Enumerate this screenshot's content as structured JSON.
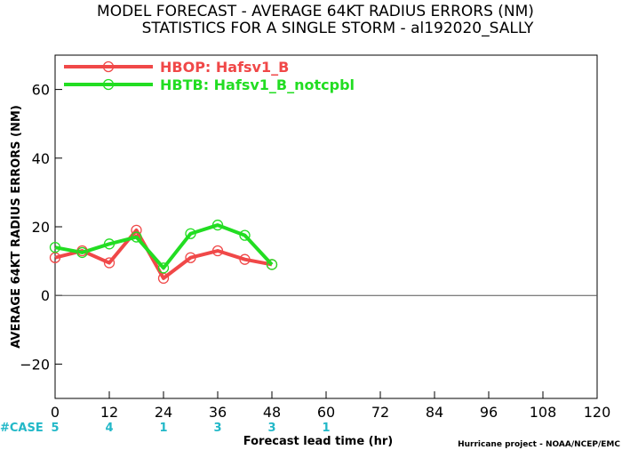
{
  "chart_data": {
    "type": "line",
    "title": "MODEL FORECAST - AVERAGE 64KT RADIUS ERRORS (NM)",
    "subtitle": "STATISTICS FOR A SINGLE STORM - al192020_SALLY",
    "xlabel": "Forecast lead time (hr)",
    "ylabel": "AVERAGE 64KT RADIUS ERRORS (NM)",
    "xlim": [
      0,
      120
    ],
    "ylim": [
      -30,
      70
    ],
    "xticks": [
      0,
      12,
      24,
      36,
      48,
      60,
      72,
      84,
      96,
      108,
      120
    ],
    "yticks": [
      -20,
      0,
      20,
      40,
      60
    ],
    "legend_position": "top-left",
    "series": [
      {
        "name": "HBOP: Hafsv1_B",
        "color": "#f04848",
        "x": [
          0,
          6,
          12,
          18,
          24,
          30,
          36,
          42,
          48
        ],
        "y": [
          11,
          13,
          9.5,
          19,
          5,
          11,
          13,
          10.5,
          9
        ]
      },
      {
        "name": "HBTB: Hafsv1_B_notcpbl",
        "color": "#22dd22",
        "x": [
          0,
          6,
          12,
          18,
          24,
          30,
          36,
          42,
          48
        ],
        "y": [
          14,
          12.5,
          15,
          17,
          8,
          18,
          20.5,
          17.5,
          9
        ]
      }
    ],
    "case_label": "#CASE",
    "case_color": "#22b8c8",
    "cases": [
      {
        "x": 0,
        "n": "5"
      },
      {
        "x": 12,
        "n": "4"
      },
      {
        "x": 24,
        "n": "1"
      },
      {
        "x": 36,
        "n": "3"
      },
      {
        "x": 48,
        "n": "3"
      },
      {
        "x": 60,
        "n": "1"
      }
    ],
    "credit": "Hurricane project - NOAA/NCEP/EMC"
  }
}
